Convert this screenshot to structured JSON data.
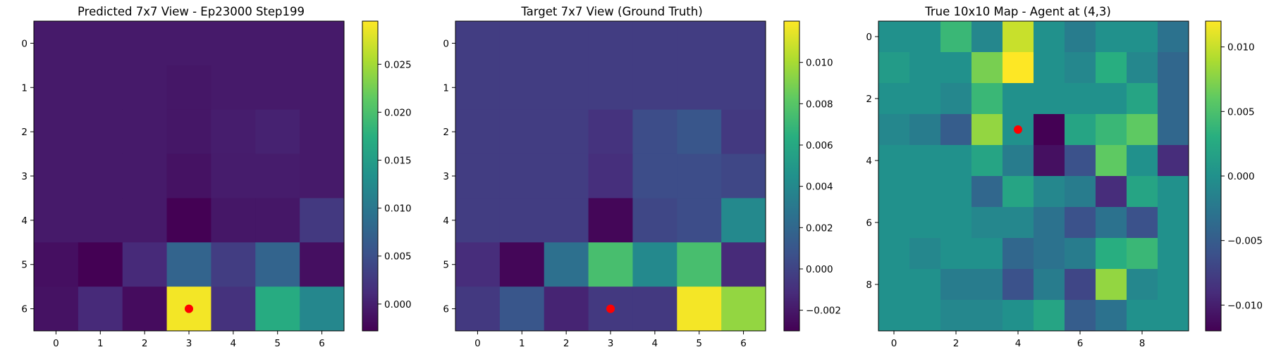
{
  "figure": {
    "width": 1800,
    "height": 500
  },
  "chart_data": [
    {
      "type": "heatmap",
      "title": "Predicted 7x7 View - Ep23000 Step199",
      "xlabel": "",
      "ylabel": "",
      "grid": false,
      "colormap": "viridis",
      "rows": 7,
      "cols": 7,
      "x_ticks": [
        0,
        1,
        2,
        3,
        4,
        5,
        6
      ],
      "y_ticks": [
        0,
        1,
        2,
        3,
        4,
        5,
        6
      ],
      "values": [
        [
          -0.0005,
          -0.0005,
          -0.0005,
          -0.0005,
          -0.0005,
          -0.0005,
          -0.0005
        ],
        [
          -0.0005,
          -0.0005,
          -0.0005,
          -0.0008,
          -0.0005,
          -0.0005,
          -0.0005
        ],
        [
          -0.0005,
          -0.0005,
          -0.0005,
          -0.0008,
          -0.0002,
          0.0002,
          -0.0005
        ],
        [
          -0.0005,
          -0.0005,
          -0.0005,
          -0.0012,
          -0.0003,
          -0.0003,
          -0.0005
        ],
        [
          -0.0005,
          -0.0005,
          -0.0005,
          -0.003,
          -0.0008,
          -0.0008,
          0.0025
        ],
        [
          -0.0015,
          -0.0028,
          0.001,
          0.0075,
          0.003,
          0.0075,
          -0.0015
        ],
        [
          -0.0012,
          0.001,
          -0.0018,
          0.029,
          0.0018,
          0.017,
          0.012
        ]
      ],
      "vmin": -0.0028,
      "vmax": 0.0295,
      "colorbar_ticks": [
        0.0,
        0.005,
        0.01,
        0.015,
        0.02,
        0.025
      ],
      "colorbar_labels": [
        "0.000",
        "0.005",
        "0.010",
        "0.015",
        "0.020",
        "0.025"
      ],
      "marker": {
        "x": 3,
        "y": 6,
        "color": "#ff0000"
      }
    },
    {
      "type": "heatmap",
      "title": "Target 7x7 View (Ground Truth)",
      "xlabel": "",
      "ylabel": "",
      "grid": false,
      "colormap": "viridis",
      "rows": 7,
      "cols": 7,
      "x_ticks": [
        0,
        1,
        2,
        3,
        4,
        5,
        6
      ],
      "y_ticks": [
        0,
        1,
        2,
        3,
        4,
        5,
        6
      ],
      "values": [
        [
          -0.0003,
          -0.0003,
          -0.0003,
          -0.0003,
          -0.0003,
          -0.0003,
          -0.0003
        ],
        [
          -0.0003,
          -0.0003,
          -0.0003,
          -0.0003,
          -0.0003,
          -0.0003,
          -0.0003
        ],
        [
          -0.0003,
          -0.0003,
          -0.0003,
          -0.0008,
          0.0005,
          0.001,
          -0.0005
        ],
        [
          -0.0003,
          -0.0003,
          -0.0003,
          -0.001,
          0.0005,
          0.0005,
          0.0002
        ],
        [
          -0.0003,
          -0.0003,
          -0.0003,
          -0.0028,
          0.0002,
          0.0005,
          0.004
        ],
        [
          -0.0011,
          -0.0028,
          0.0025,
          0.0075,
          0.004,
          0.0075,
          -0.0012
        ],
        [
          -0.0005,
          0.001,
          -0.0015,
          -0.0005,
          -0.0005,
          0.0118,
          0.0095
        ]
      ],
      "vmin": -0.003,
      "vmax": 0.012,
      "colorbar_ticks": [
        -0.002,
        0.0,
        0.002,
        0.004,
        0.006,
        0.008,
        0.01
      ],
      "colorbar_labels": [
        "−0.002",
        "0.000",
        "0.002",
        "0.004",
        "0.006",
        "0.008",
        "0.010"
      ],
      "marker": {
        "x": 3,
        "y": 6,
        "color": "#ff0000"
      }
    },
    {
      "type": "heatmap",
      "title": "True 10x10 Map - Agent at (4,3)",
      "xlabel": "",
      "ylabel": "",
      "grid": false,
      "colormap": "viridis",
      "rows": 10,
      "cols": 10,
      "x_ticks": [
        0,
        2,
        4,
        6,
        8
      ],
      "y_ticks": [
        0,
        2,
        4,
        6,
        8
      ],
      "values": [
        [
          0.0,
          0.0,
          0.004,
          -0.001,
          0.01,
          0.0,
          -0.002,
          0.0,
          0.0,
          -0.003
        ],
        [
          0.001,
          0.0,
          0.0,
          0.007,
          0.012,
          0.0,
          -0.001,
          0.003,
          -0.001,
          -0.004
        ],
        [
          0.0,
          0.0,
          -0.001,
          0.004,
          0.0,
          0.0,
          0.0,
          0.0,
          0.002,
          -0.004
        ],
        [
          -0.001,
          -0.002,
          -0.005,
          0.008,
          0.0,
          -0.012,
          0.002,
          0.004,
          0.006,
          -0.004
        ],
        [
          0.0,
          0.0,
          0.0,
          0.002,
          -0.002,
          -0.011,
          -0.006,
          0.006,
          0.0,
          -0.009
        ],
        [
          0.0,
          0.0,
          0.0,
          -0.004,
          0.002,
          -0.001,
          -0.002,
          -0.009,
          0.002,
          0.0
        ],
        [
          0.0,
          0.0,
          0.0,
          -0.001,
          -0.001,
          -0.003,
          -0.006,
          -0.003,
          -0.006,
          0.0
        ],
        [
          0.0,
          -0.001,
          0.0,
          0.0,
          -0.004,
          -0.003,
          -0.002,
          0.003,
          0.004,
          0.0
        ],
        [
          0.0,
          0.0,
          -0.002,
          -0.002,
          -0.006,
          -0.002,
          -0.007,
          0.008,
          -0.001,
          0.0
        ],
        [
          0.0,
          0.0,
          -0.001,
          -0.001,
          0.0,
          0.002,
          -0.005,
          -0.003,
          0.0,
          0.0
        ]
      ],
      "vmin": -0.012,
      "vmax": 0.012,
      "colorbar_ticks": [
        -0.01,
        -0.005,
        0.0,
        0.005,
        0.01
      ],
      "colorbar_labels": [
        "−0.010",
        "−0.005",
        "0.000",
        "0.005",
        "0.010"
      ],
      "marker": {
        "x": 4,
        "y": 3,
        "color": "#ff0000"
      }
    }
  ]
}
